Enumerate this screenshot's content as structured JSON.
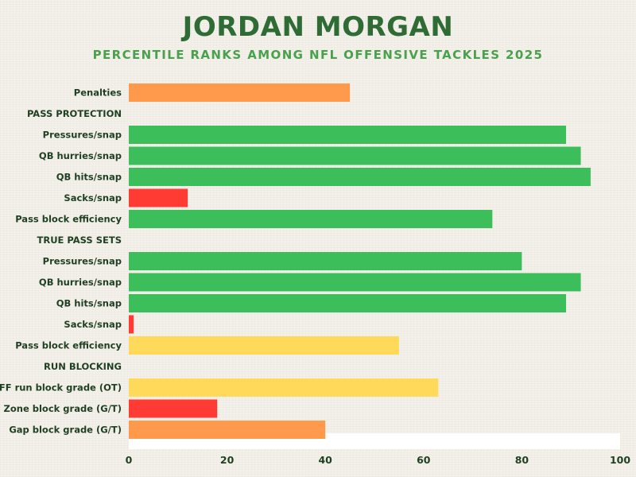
{
  "title": "JORDAN MORGAN",
  "subtitle": "PERCENTILE RANKS AMONG NFL OFFENSIVE TACKLES 2025",
  "colors": {
    "title": "#2e6b35",
    "subtitle": "#49a04d",
    "label": "#1f3f22",
    "green": "#3cbf5a",
    "yellow": "#ffd95a",
    "orange": "#ff9a4d",
    "red": "#ff3b34"
  },
  "chart_data": {
    "type": "bar",
    "orientation": "horizontal",
    "xlim": [
      0,
      100
    ],
    "xticks": [
      "0",
      "20",
      "40",
      "60",
      "80",
      "100"
    ],
    "grid": false,
    "rows": [
      {
        "label": "Penalties",
        "value": 45,
        "color": "orange"
      },
      {
        "label": "PASS PROTECTION",
        "value": null,
        "header": true
      },
      {
        "label": "Pressures/snap",
        "value": 89,
        "color": "green"
      },
      {
        "label": "QB hurries/snap",
        "value": 92,
        "color": "green"
      },
      {
        "label": "QB hits/snap",
        "value": 94,
        "color": "green"
      },
      {
        "label": "Sacks/snap",
        "value": 12,
        "color": "red"
      },
      {
        "label": "Pass block efficiency",
        "value": 74,
        "color": "green"
      },
      {
        "label": "TRUE PASS SETS",
        "value": null,
        "header": true
      },
      {
        "label": "Pressures/snap",
        "value": 80,
        "color": "green"
      },
      {
        "label": "QB hurries/snap",
        "value": 92,
        "color": "green"
      },
      {
        "label": "QB hits/snap",
        "value": 89,
        "color": "green"
      },
      {
        "label": "Sacks/snap",
        "value": 1,
        "color": "red"
      },
      {
        "label": "Pass block efficiency",
        "value": 55,
        "color": "yellow"
      },
      {
        "label": "RUN BLOCKING",
        "value": null,
        "header": true
      },
      {
        "label": "PFF run block grade (OT)",
        "value": 63,
        "color": "yellow"
      },
      {
        "label": "Zone block grade (G/T)",
        "value": 18,
        "color": "red"
      },
      {
        "label": "Gap block grade (G/T)",
        "value": 40,
        "color": "orange"
      }
    ]
  }
}
